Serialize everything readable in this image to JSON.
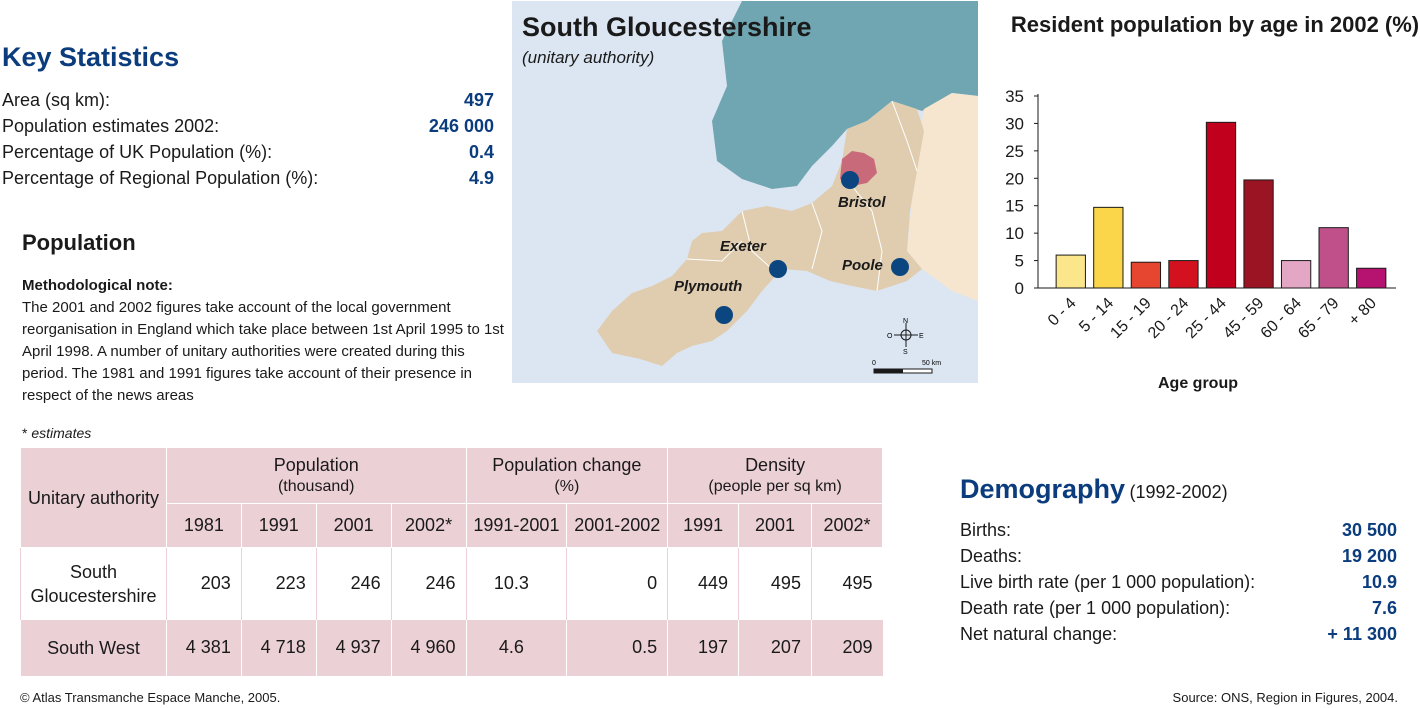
{
  "key_statistics": {
    "title": "Key Statistics",
    "rows": [
      {
        "label": "Area (sq km):",
        "value": "497"
      },
      {
        "label": "Population estimates 2002:",
        "value": "246 000"
      },
      {
        "label": "Percentage of UK Population (%):",
        "value": "0.4"
      },
      {
        "label": "Percentage of Regional Population (%):",
        "value": "4.9"
      }
    ]
  },
  "population": {
    "title": "Population",
    "method_label": "Methodological note:",
    "method_text": "The 2001 and 2002 figures take account of the local government reorganisation in England which take place between 1st April 1995 to 1st April 1998. A number of unitary authorities were created during this period. The 1981 and 1991 figures take account of their presence in respect of the news areas",
    "estimates_asterisk": "*",
    "estimates_label": "estimates"
  },
  "table": {
    "col_unitary": "Unitary authority",
    "group_population": "Population",
    "group_population_sub": "(thousand)",
    "group_change": "Population change",
    "group_change_sub": "(%)",
    "group_density": "Density",
    "group_density_sub": "(people per sq km)",
    "years": [
      "1981",
      "1991",
      "2001",
      "2002*",
      "1991-2001",
      "2001-2002",
      "1991",
      "2001",
      "2002*"
    ],
    "rows": [
      {
        "name": "South Gloucestershire",
        "values": [
          "203",
          "223",
          "246",
          "246",
          "10.3",
          "0",
          "449",
          "495",
          "495"
        ]
      },
      {
        "name": "South West",
        "values": [
          "4 381",
          "4 718",
          "4 937",
          "4 960",
          "4.6",
          "0.5",
          "197",
          "207",
          "209"
        ]
      }
    ]
  },
  "map": {
    "title": "South Gloucestershire",
    "subtitle": "(unitary authority)",
    "cities": [
      "Bristol",
      "Exeter",
      "Poole",
      "Plymouth"
    ],
    "scale_zero": "0",
    "scale_end": "50 km",
    "compass": {
      "n": "N",
      "s": "S",
      "e": "E",
      "w": "O"
    },
    "colors": {
      "sea": "#dce6f2",
      "wales": "#6fa6b2",
      "region": "#e0cdb0",
      "highlight": "#c96a7a",
      "neighbour": "#f6e6cf",
      "dot": "#0b4680"
    }
  },
  "chart_data": {
    "type": "bar",
    "title": "Resident population by age in 2002 (%)",
    "xlabel": "Age group",
    "ylabel": "",
    "ylim": [
      0,
      35
    ],
    "yticks": [
      "0",
      "5",
      "10",
      "15",
      "20",
      "25",
      "30",
      "35"
    ],
    "categories": [
      "0 - 4",
      "5 - 14",
      "15 - 19",
      "20 - 24",
      "25 - 44",
      "45 - 59",
      "60 - 64",
      "65 - 79",
      "+ 80"
    ],
    "values": [
      6,
      14.7,
      4.7,
      5,
      30.2,
      19.7,
      5,
      11,
      3.6
    ],
    "colors": [
      "#fbe68b",
      "#fbd54a",
      "#e64530",
      "#d4121f",
      "#c0001d",
      "#9b1423",
      "#e3a6c4",
      "#c0508a",
      "#b5136f"
    ]
  },
  "demography": {
    "title": "Demography",
    "period": "(1992-2002)",
    "rows": [
      {
        "label": "Births:",
        "value": "30 500"
      },
      {
        "label": "Deaths:",
        "value": "19 200"
      },
      {
        "label": "Live birth rate (per 1 000 population):",
        "value": "10.9"
      },
      {
        "label": "Death rate (per 1 000 population):",
        "value": "7.6"
      },
      {
        "label": "Net natural change:",
        "value": "+ 11 300"
      }
    ]
  },
  "footer": {
    "copyright": "© Atlas Transmanche Espace Manche, 2005.",
    "source": "Source: ONS, Region in Figures, 2004."
  }
}
